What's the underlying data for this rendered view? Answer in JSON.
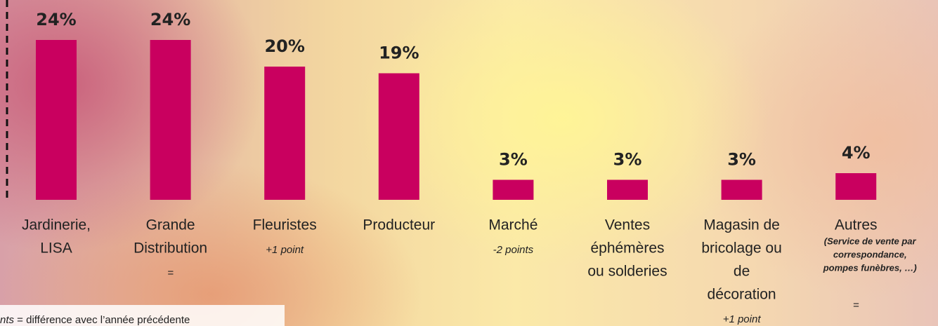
{
  "chart_data": {
    "type": "bar",
    "categories": [
      [
        "Jardinerie,",
        "LISA"
      ],
      [
        "Grande",
        "Distribution"
      ],
      [
        "Fleuristes"
      ],
      [
        "Producteur"
      ],
      [
        "Marché"
      ],
      [
        "Ventes",
        "éphémères",
        "ou solderies"
      ],
      [
        "Magasin de",
        "bricolage ou",
        "de",
        "décoration"
      ],
      [
        "Autres"
      ]
    ],
    "notes": [
      null,
      null,
      null,
      null,
      null,
      null,
      null,
      [
        "(Service de vente par",
        "correspondance,",
        "pompes funèbres, …)"
      ]
    ],
    "changes": [
      null,
      "=",
      "+1  point",
      null,
      "-2 points",
      null,
      "+1 point",
      "="
    ],
    "values": [
      24,
      24,
      20,
      19,
      3,
      3,
      3,
      4
    ],
    "value_labels": [
      "24%",
      "24%",
      "20%",
      "19%",
      "3%",
      "3%",
      "3%",
      "4%"
    ],
    "color": "#c9005f",
    "footnote": {
      "term": "nts",
      "text": " = différence avec l’année précédente"
    }
  }
}
